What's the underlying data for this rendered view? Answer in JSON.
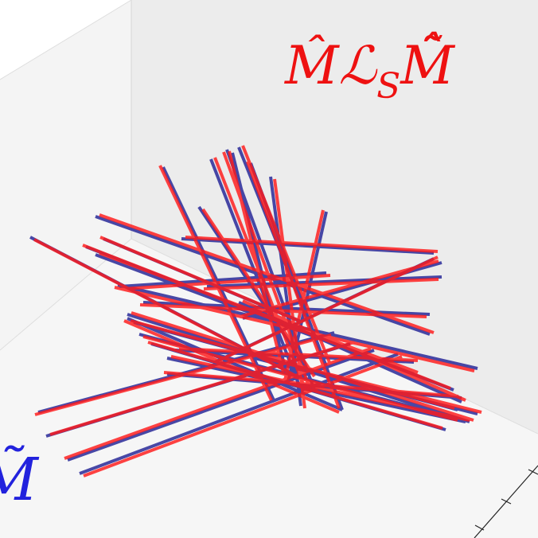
{
  "labels": {
    "top_right": {
      "main": "M̂ℒ",
      "sub": "S",
      "tail": "M̃̂"
    },
    "bottom_left": "M̃"
  },
  "colors": {
    "red": "#ff1a1a",
    "blue": "#2a2a99",
    "red_label": "#ee1111",
    "blue_label": "#2222dd",
    "pane_back": "#ececec",
    "pane_left": "#f4f4f4",
    "pane_floor": "#f7f7f7",
    "pane_edge": "#d6d6d6"
  }
}
